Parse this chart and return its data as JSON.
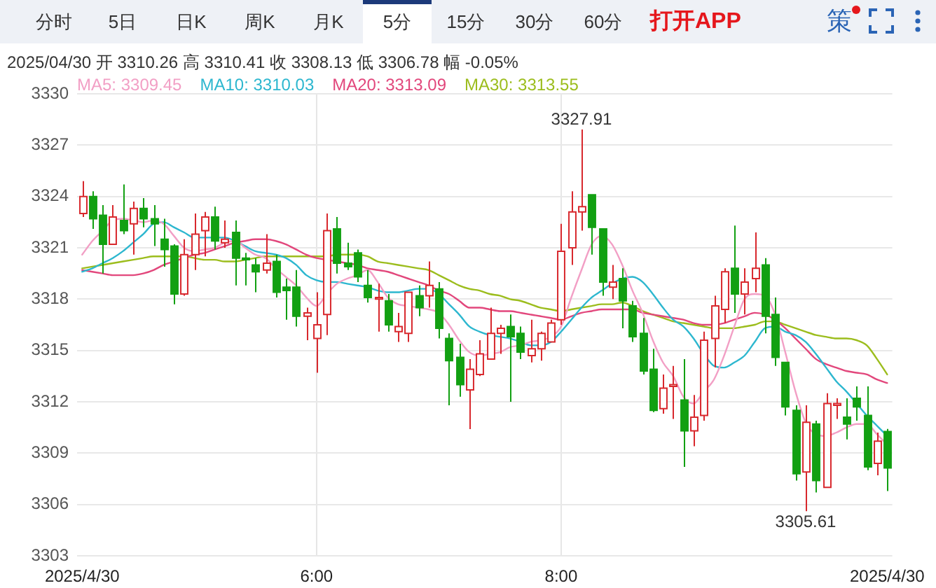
{
  "chart_data": {
    "type": "candlestick",
    "title": "2025/04/30 开 3310.26 高 3310.41 收 3308.13 低 3306.78 幅 -0.05%",
    "categories": [
      "2025/4/30",
      null,
      null,
      null,
      null,
      null,
      null,
      null,
      null,
      null,
      null,
      null,
      null,
      null,
      null,
      null,
      null,
      null,
      null,
      null,
      null,
      null,
      null,
      "6:00",
      null,
      null,
      null,
      null,
      null,
      null,
      null,
      null,
      null,
      null,
      null,
      null,
      null,
      null,
      null,
      null,
      null,
      null,
      null,
      null,
      null,
      null,
      null,
      "8:00",
      null,
      null,
      null,
      null,
      null,
      null,
      null,
      null,
      null,
      null,
      null,
      null,
      null,
      null,
      null,
      null,
      null,
      null,
      null,
      null,
      null,
      null,
      null,
      null,
      null,
      null,
      null,
      null,
      null,
      null,
      null,
      "2025/4/30"
    ],
    "ohlc": [
      [
        3323.0,
        3324.9,
        3322.8,
        3324.0
      ],
      [
        3324.0,
        3324.3,
        3322.1,
        3322.7
      ],
      [
        3322.9,
        3323.5,
        3319.5,
        3321.2
      ],
      [
        3321.2,
        3323.5,
        3321.2,
        3322.8
      ],
      [
        3322.6,
        3324.7,
        3321.8,
        3322.0
      ],
      [
        3322.4,
        3323.7,
        3320.6,
        3323.3
      ],
      [
        3323.3,
        3323.9,
        3322.2,
        3322.7
      ],
      [
        3322.7,
        3323.5,
        3321.1,
        3322.4
      ],
      [
        3321.5,
        3322.7,
        3319.9,
        3320.9
      ],
      [
        3321.1,
        3321.2,
        3317.7,
        3318.3
      ],
      [
        3318.3,
        3321.5,
        3318.2,
        3320.6
      ],
      [
        3320.6,
        3323.0,
        3319.7,
        3321.8
      ],
      [
        3322.0,
        3323.1,
        3320.5,
        3322.8
      ],
      [
        3322.8,
        3323.4,
        3320.9,
        3321.4
      ],
      [
        3321.3,
        3322.6,
        3321.0,
        3321.5
      ],
      [
        3321.9,
        3322.6,
        3318.8,
        3320.4
      ],
      [
        3320.4,
        3320.7,
        3318.8,
        3320.3
      ],
      [
        3320.0,
        3320.4,
        3318.4,
        3319.6
      ],
      [
        3319.7,
        3321.8,
        3319.5,
        3320.1
      ],
      [
        3320.2,
        3320.6,
        3318.1,
        3318.4
      ],
      [
        3318.7,
        3319.2,
        3316.8,
        3318.5
      ],
      [
        3318.7,
        3319.7,
        3316.4,
        3317.0
      ],
      [
        3317.0,
        3317.5,
        3315.6,
        3317.2
      ],
      [
        3315.7,
        3318.4,
        3313.7,
        3316.5
      ],
      [
        3317.1,
        3323.0,
        3315.9,
        3322.0
      ],
      [
        3322.1,
        3322.8,
        3319.5,
        3320.1
      ],
      [
        3320.1,
        3321.3,
        3319.7,
        3319.9
      ],
      [
        3320.7,
        3320.9,
        3319.0,
        3319.3
      ],
      [
        3318.8,
        3319.7,
        3317.8,
        3318.1
      ],
      [
        3318.0,
        3318.9,
        3316.1,
        3318.1
      ],
      [
        3317.9,
        3318.3,
        3316.1,
        3316.5
      ],
      [
        3316.1,
        3317.2,
        3315.5,
        3316.4
      ],
      [
        3316.0,
        3318.4,
        3315.5,
        3318.4
      ],
      [
        3318.2,
        3318.8,
        3317.0,
        3317.5
      ],
      [
        3318.2,
        3320.2,
        3317.5,
        3318.8
      ],
      [
        3318.6,
        3319.0,
        3315.7,
        3316.3
      ],
      [
        3315.7,
        3316.0,
        3311.8,
        3314.4
      ],
      [
        3314.6,
        3315.4,
        3312.3,
        3313.0
      ],
      [
        3312.7,
        3314.5,
        3310.4,
        3313.9
      ],
      [
        3313.6,
        3315.6,
        3313.5,
        3314.8
      ],
      [
        3314.5,
        3317.5,
        3314.5,
        3316.0
      ],
      [
        3316.0,
        3316.5,
        3314.8,
        3316.3
      ],
      [
        3316.4,
        3317.1,
        3312.0,
        3315.8
      ],
      [
        3316.0,
        3316.4,
        3314.5,
        3314.9
      ],
      [
        3314.7,
        3316.8,
        3314.3,
        3315.1
      ],
      [
        3315.1,
        3316.1,
        3314.4,
        3316.0
      ],
      [
        3315.5,
        3316.8,
        3315.5,
        3316.6
      ],
      [
        3316.8,
        3322.4,
        3316.5,
        3320.8
      ],
      [
        3321.0,
        3324.3,
        3320.0,
        3323.1
      ],
      [
        3323.1,
        3327.91,
        3322.0,
        3323.4
      ],
      [
        3324.1,
        3324.1,
        3320.6,
        3322.2
      ],
      [
        3322.1,
        3322.1,
        3318.2,
        3319.0
      ],
      [
        3318.7,
        3320.0,
        3318.0,
        3319.0
      ],
      [
        3319.2,
        3319.8,
        3316.3,
        3317.9
      ],
      [
        3317.6,
        3317.9,
        3315.5,
        3315.8
      ],
      [
        3316.0,
        3316.9,
        3313.6,
        3313.8
      ],
      [
        3313.9,
        3315.1,
        3311.4,
        3311.5
      ],
      [
        3311.6,
        3313.6,
        3311.3,
        3312.8
      ],
      [
        3312.9,
        3314.1,
        3311.0,
        3313.0
      ],
      [
        3312.1,
        3314.5,
        3308.2,
        3310.3
      ],
      [
        3310.3,
        3312.4,
        3309.4,
        3311.1
      ],
      [
        3311.2,
        3316.1,
        3310.9,
        3315.6
      ],
      [
        3315.7,
        3318.2,
        3314.0,
        3317.6
      ],
      [
        3317.4,
        3319.8,
        3316.6,
        3319.6
      ],
      [
        3319.8,
        3322.3,
        3317.2,
        3318.3
      ],
      [
        3318.3,
        3319.8,
        3317.1,
        3319.0
      ],
      [
        3319.2,
        3321.9,
        3318.4,
        3319.8
      ],
      [
        3320.0,
        3320.4,
        3316.0,
        3317.0
      ],
      [
        3317.1,
        3318.1,
        3314.1,
        3314.6
      ],
      [
        3314.3,
        3314.3,
        3311.2,
        3311.7
      ],
      [
        3311.5,
        3311.8,
        3307.4,
        3307.8
      ],
      [
        3307.9,
        3311.8,
        3305.61,
        3310.8
      ],
      [
        3310.7,
        3310.9,
        3306.7,
        3307.4
      ],
      [
        3307.0,
        3312.5,
        3307.0,
        3311.9
      ],
      [
        3311.8,
        3312.2,
        3311.0,
        3311.9
      ],
      [
        3311.1,
        3312.2,
        3309.8,
        3310.7
      ],
      [
        3312.2,
        3312.9,
        3310.9,
        3311.7
      ],
      [
        3311.2,
        3312.9,
        3308.0,
        3308.2
      ],
      [
        3308.4,
        3310.2,
        3307.7,
        3309.7
      ],
      [
        3310.26,
        3310.41,
        3306.78,
        3308.13
      ]
    ],
    "colors": [
      "#d8282d",
      "#12a012",
      "#12a012",
      "#d8282d",
      "#12a012",
      "#d8282d",
      "#12a012",
      "#12a012",
      "#12a012",
      "#12a012",
      "#d8282d",
      "#d8282d",
      "#d8282d",
      "#12a012",
      "#d8282d",
      "#12a012",
      "#12a012",
      "#12a012",
      "#d8282d",
      "#12a012",
      "#12a012",
      "#12a012",
      "#d8282d",
      "#d8282d",
      "#d8282d",
      "#12a012",
      "#12a012",
      "#12a012",
      "#12a012",
      "#d8282d",
      "#12a012",
      "#d8282d",
      "#d8282d",
      "#12a012",
      "#d8282d",
      "#12a012",
      "#12a012",
      "#12a012",
      "#d8282d",
      "#d8282d",
      "#d8282d",
      "#d8282d",
      "#12a012",
      "#12a012",
      "#d8282d",
      "#d8282d",
      "#d8282d",
      "#d8282d",
      "#d8282d",
      "#d8282d",
      "#12a012",
      "#12a012",
      "#d8282d",
      "#12a012",
      "#12a012",
      "#12a012",
      "#12a012",
      "#d8282d",
      "#d8282d",
      "#12a012",
      "#d8282d",
      "#d8282d",
      "#d8282d",
      "#d8282d",
      "#12a012",
      "#d8282d",
      "#d8282d",
      "#12a012",
      "#12a012",
      "#12a012",
      "#12a012",
      "#d8282d",
      "#12a012",
      "#d8282d",
      "#d8282d",
      "#12a012",
      "#12a012",
      "#12a012",
      "#d8282d",
      "#12a012"
    ],
    "series": [
      {
        "name": "MA5: 3309.45",
        "type": "line",
        "color": "#f29fc5",
        "values": [
          3320.6,
          3321.4,
          3322.0,
          3322.6,
          3322.7,
          3322.6,
          3322.5,
          3322.6,
          3322.4,
          3321.7,
          3321.0,
          3320.8,
          3320.9,
          3321.0,
          3321.3,
          3321.4,
          3321.0,
          3320.6,
          3320.4,
          3319.8,
          3319.3,
          3318.8,
          3318.1,
          3317.6,
          3318.3,
          3318.9,
          3319.2,
          3319.4,
          3319.7,
          3319.0,
          3318.1,
          3317.7,
          3317.6,
          3317.5,
          3317.4,
          3317.2,
          3316.5,
          3315.6,
          3314.9,
          3314.7,
          3314.8,
          3314.9,
          3315.2,
          3315.3,
          3315.5,
          3315.6,
          3315.8,
          3316.4,
          3318.1,
          3319.7,
          3321.2,
          3321.7,
          3321.2,
          3320.0,
          3318.5,
          3317.2,
          3315.6,
          3314.3,
          3313.5,
          3312.3,
          3311.9,
          3312.6,
          3313.3,
          3314.7,
          3316.4,
          3318.0,
          3318.3,
          3318.2,
          3317.1,
          3314.9,
          3312.6,
          3310.8,
          3310.1,
          3310.0,
          3310.2,
          3310.5,
          3310.7,
          3310.7,
          3310.1,
          3309.5
        ]
      },
      {
        "name": "MA10: 3310.03",
        "type": "line",
        "color": "#2db7cf",
        "values": [
          3319.6,
          3319.8,
          3320.1,
          3320.4,
          3320.8,
          3321.3,
          3321.8,
          3322.4,
          3322.5,
          3322.2,
          3321.9,
          3321.6,
          3321.6,
          3321.6,
          3321.6,
          3321.4,
          3321.1,
          3320.8,
          3320.7,
          3320.6,
          3320.4,
          3320.0,
          3319.4,
          3319.1,
          3319.0,
          3319.0,
          3318.9,
          3318.8,
          3318.7,
          3318.5,
          3318.4,
          3318.4,
          3318.5,
          3318.6,
          3318.6,
          3318.3,
          3317.7,
          3317.1,
          3316.4,
          3316.1,
          3315.9,
          3315.8,
          3315.7,
          3315.5,
          3315.3,
          3315.3,
          3315.5,
          3316.1,
          3316.8,
          3317.5,
          3318.1,
          3318.5,
          3318.9,
          3319.2,
          3319.3,
          3319.0,
          3318.3,
          3317.5,
          3316.8,
          3316.4,
          3315.7,
          3314.8,
          3314.1,
          3314.0,
          3314.3,
          3314.7,
          3315.5,
          3316.3,
          3316.4,
          3316.1,
          3315.9,
          3315.5,
          3314.8,
          3314.0,
          3313.2,
          3312.6,
          3311.9,
          3311.2,
          3310.6,
          3310.0
        ]
      },
      {
        "name": "MA20: 3313.09",
        "type": "line",
        "color": "#e2477c",
        "values": [
          3319.7,
          3319.6,
          3319.5,
          3319.4,
          3319.4,
          3319.4,
          3319.5,
          3319.7,
          3320.0,
          3320.2,
          3320.4,
          3320.6,
          3320.7,
          3320.9,
          3321.1,
          3321.3,
          3321.4,
          3321.5,
          3321.5,
          3321.4,
          3321.2,
          3320.9,
          3320.6,
          3320.4,
          3320.3,
          3320.2,
          3320.1,
          3320.0,
          3319.8,
          3319.7,
          3319.6,
          3319.4,
          3319.2,
          3319.0,
          3318.8,
          3318.5,
          3318.3,
          3317.9,
          3317.5,
          3317.5,
          3317.4,
          3317.3,
          3317.3,
          3317.2,
          3317.1,
          3317.0,
          3316.9,
          3316.8,
          3317.0,
          3317.2,
          3317.3,
          3317.4,
          3317.4,
          3317.4,
          3317.4,
          3317.2,
          3317.1,
          3317.0,
          3316.9,
          3316.8,
          3316.6,
          3316.5,
          3316.5,
          3316.6,
          3316.8,
          3317.0,
          3317.2,
          3317.1,
          3316.8,
          3316.3,
          3315.7,
          3315.1,
          3314.5,
          3314.2,
          3314.0,
          3313.8,
          3313.7,
          3313.6,
          3313.3,
          3313.1
        ]
      },
      {
        "name": "MA30: 3313.55",
        "type": "line",
        "color": "#9cbd1d",
        "values": [
          3319.8,
          3319.9,
          3320.0,
          3320.1,
          3320.2,
          3320.3,
          3320.4,
          3320.5,
          3320.5,
          3320.5,
          3320.5,
          3320.4,
          3320.3,
          3320.3,
          3320.2,
          3320.2,
          3320.3,
          3320.4,
          3320.5,
          3320.5,
          3320.5,
          3320.5,
          3320.5,
          3320.5,
          3320.5,
          3320.6,
          3320.6,
          3320.6,
          3320.5,
          3320.2,
          3320.1,
          3320.0,
          3319.9,
          3319.8,
          3319.7,
          3319.4,
          3319.1,
          3318.8,
          3318.6,
          3318.5,
          3318.3,
          3318.2,
          3318.0,
          3317.9,
          3317.7,
          3317.5,
          3317.4,
          3317.3,
          3317.4,
          3317.5,
          3317.6,
          3317.7,
          3317.7,
          3317.8,
          3317.6,
          3317.3,
          3317.1,
          3316.9,
          3316.7,
          3316.6,
          3316.5,
          3316.4,
          3316.3,
          3316.3,
          3316.3,
          3316.4,
          3316.5,
          3316.7,
          3316.7,
          3316.5,
          3316.3,
          3316.1,
          3315.9,
          3315.8,
          3315.7,
          3315.7,
          3315.6,
          3315.3,
          3314.5,
          3313.6
        ]
      }
    ],
    "ylim": [
      3303,
      3330
    ],
    "yticks": [
      3303,
      3306,
      3309,
      3312,
      3315,
      3318,
      3321,
      3324,
      3327,
      3330
    ],
    "grid": true,
    "legend": "top left",
    "marker": "none",
    "annotations": [
      "分时",
      "5日",
      "日K",
      "周K",
      "月K",
      "5分",
      "15分",
      "30分",
      "60分",
      "打开APP",
      "策",
      {
        "text": "3327.91",
        "y": 3327.91
      },
      {
        "text": "3305.61",
        "y": 3305.61
      }
    ]
  }
}
